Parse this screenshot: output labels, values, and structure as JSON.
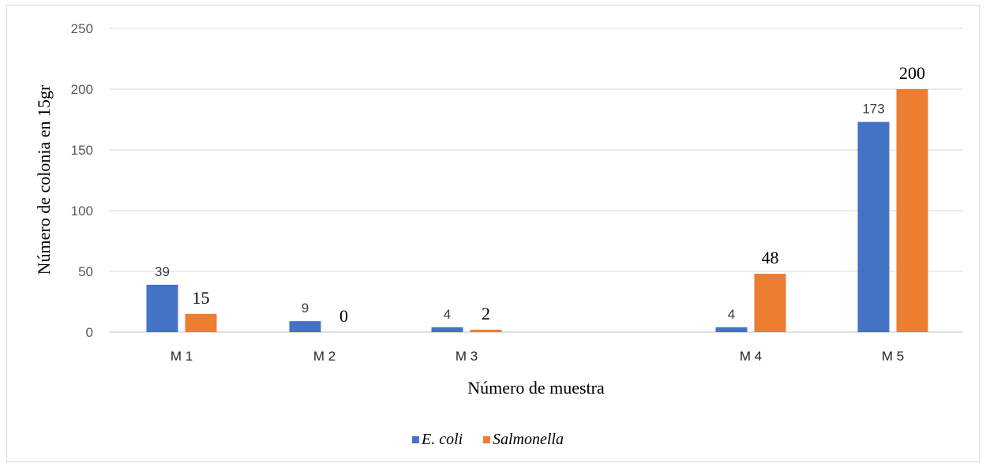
{
  "chart_data": {
    "type": "bar",
    "categories": [
      "M 1",
      "M 2",
      "M 3",
      "M 4",
      "M 5"
    ],
    "series": [
      {
        "name": "E. coli",
        "values": [
          39,
          9,
          4,
          4,
          173
        ],
        "color": "#4472c4",
        "labels": [
          "39",
          "9",
          "4",
          "4",
          "173"
        ]
      },
      {
        "name": "Salmonella",
        "values": [
          15,
          0,
          2,
          48,
          200
        ],
        "color": "#ed7d31",
        "labels": [
          "15",
          "0",
          "2",
          "48",
          "200"
        ]
      }
    ],
    "title": "",
    "xlabel": "Número de muestra",
    "ylabel": "Número  de colonia en 15gr",
    "ylim": [
      0,
      250
    ],
    "yticks": [
      "0",
      "50",
      "100",
      "150",
      "200",
      "250"
    ],
    "grid": true,
    "legend_position": "bottom"
  }
}
